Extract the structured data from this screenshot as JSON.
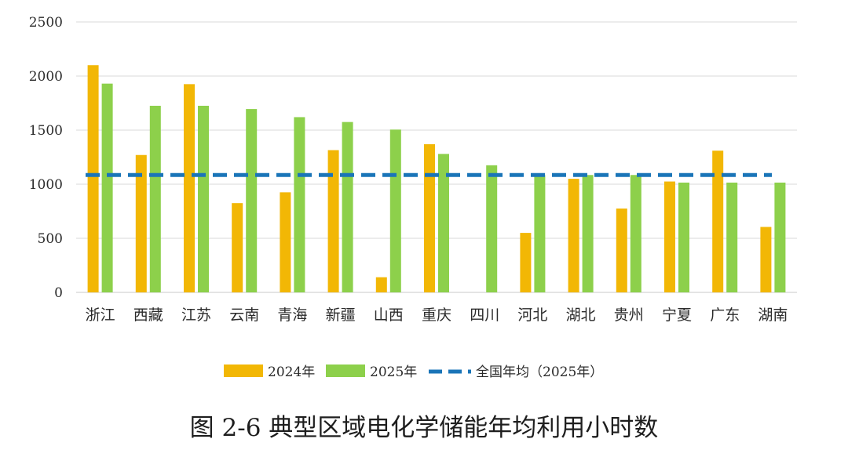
{
  "chart_data": {
    "type": "bar",
    "title": "图 2-6 典型区域电化学储能年均利用小时数",
    "xlabel": "",
    "ylabel": "",
    "ylim": [
      0,
      2500
    ],
    "yticks": [
      "0",
      "500",
      "1000",
      "1500",
      "2000",
      "2500"
    ],
    "grid": true,
    "legend_position": "bottom",
    "categories": [
      "浙江",
      "西藏",
      "江苏",
      "云南",
      "青海",
      "新疆",
      "山西",
      "重庆",
      "四川",
      "河北",
      "湖北",
      "贵州",
      "宁夏",
      "广东",
      "湖南"
    ],
    "series": [
      {
        "name": "2024年",
        "color": "#F2B705",
        "values": [
          2100,
          1270,
          1925,
          825,
          925,
          1315,
          140,
          1370,
          0,
          550,
          1050,
          775,
          1025,
          1310,
          605
        ]
      },
      {
        "name": "2025年",
        "color": "#8DD04B",
        "values": [
          1930,
          1725,
          1725,
          1695,
          1620,
          1575,
          1505,
          1280,
          1175,
          1085,
          1085,
          1085,
          1015,
          1015,
          1015
        ]
      }
    ],
    "reference_line": {
      "name": "全国年均（2025年）",
      "value": 1085,
      "color": "#1A75B8"
    }
  }
}
